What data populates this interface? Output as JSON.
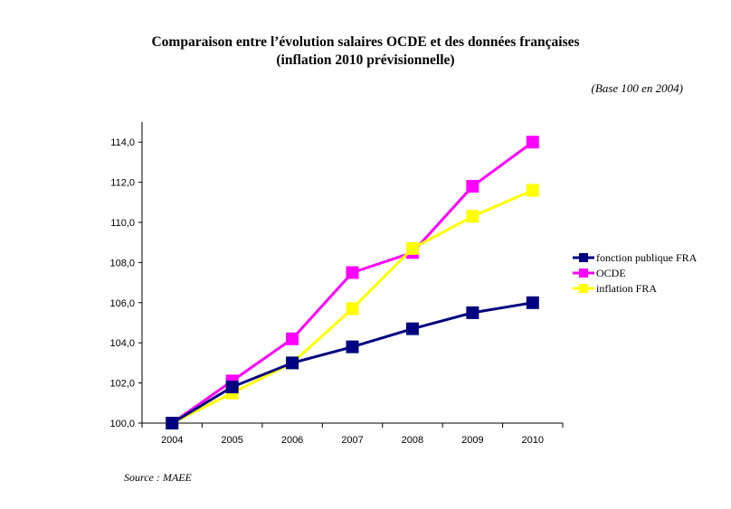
{
  "title_line1": "Comparaison entre l’évolution salaires OCDE et des données françaises",
  "title_line2": "(inflation 2010 prévisionnelle)",
  "subtitle": "(Base 100 en 2004)",
  "source": "Source : MAEE",
  "chart_data": {
    "type": "line",
    "categories": [
      "2004",
      "2005",
      "2006",
      "2007",
      "2008",
      "2009",
      "2010"
    ],
    "ylim": [
      100,
      115
    ],
    "yticks": [
      "100,0",
      "102,0",
      "104,0",
      "106,0",
      "108,0",
      "110,0",
      "112,0",
      "114,0"
    ],
    "grid": false,
    "legend_position": "right",
    "series": [
      {
        "name": "fonction publique FRA",
        "color": "#000080",
        "values": [
          100.0,
          101.8,
          103.0,
          103.8,
          104.7,
          105.5,
          106.0
        ]
      },
      {
        "name": "OCDE",
        "color": "#ff00ff",
        "values": [
          100.0,
          102.1,
          104.2,
          107.5,
          108.5,
          111.8,
          114.0
        ]
      },
      {
        "name": "inflation FRA",
        "color": "#ffff00",
        "values": [
          100.0,
          101.5,
          103.0,
          105.7,
          108.7,
          110.3,
          111.6
        ]
      }
    ]
  }
}
